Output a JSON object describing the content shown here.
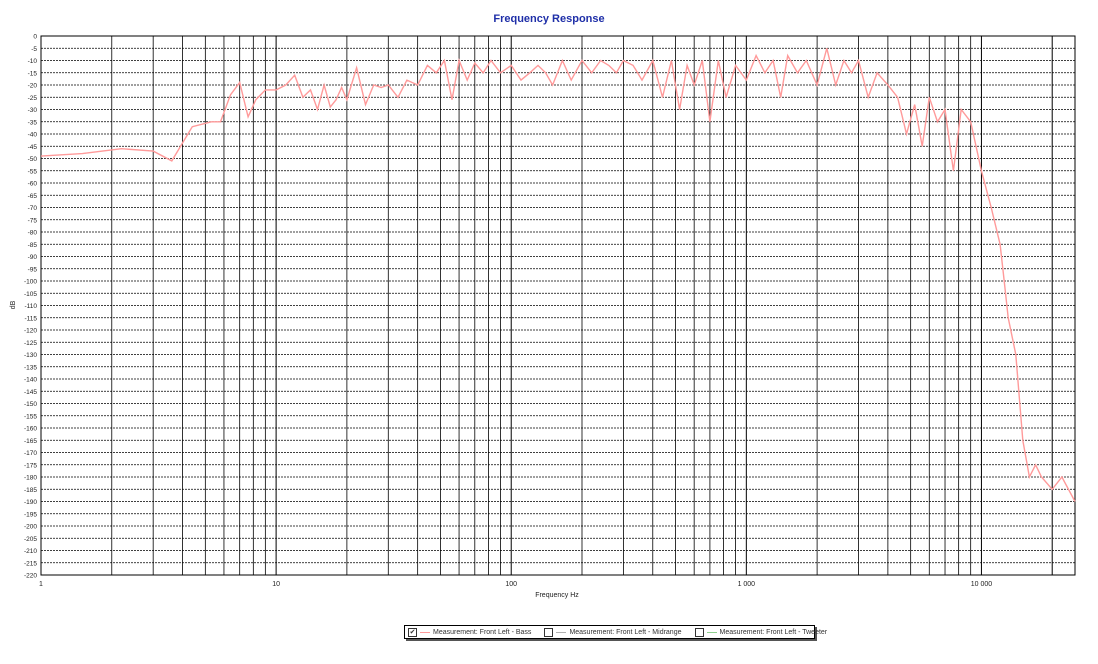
{
  "chart_data": {
    "type": "line",
    "title": "Frequency Response",
    "xlabel": "Frequency Hz",
    "ylabel": "dB",
    "x_scale": "log",
    "xlim": [
      1,
      25000
    ],
    "ylim": [
      -220,
      0
    ],
    "grid": true,
    "y_ticks": [
      0,
      -5,
      -10,
      -15,
      -20,
      -25,
      -30,
      -35,
      -40,
      -45,
      -50,
      -55,
      -60,
      -65,
      -70,
      -75,
      -80,
      -85,
      -90,
      -95,
      -100,
      -105,
      -110,
      -115,
      -120,
      -125,
      -130,
      -135,
      -140,
      -145,
      -150,
      -155,
      -160,
      -165,
      -170,
      -175,
      -180,
      -185,
      -190,
      -195,
      -200,
      -205,
      -210,
      -215,
      -220
    ],
    "x_ticks": [
      {
        "value": 1,
        "label": "1"
      },
      {
        "value": 10,
        "label": "10"
      },
      {
        "value": 100,
        "label": "100"
      },
      {
        "value": 1000,
        "label": "1 000"
      },
      {
        "value": 10000,
        "label": "10 000"
      }
    ],
    "series": [
      {
        "name": "Measurement: Front Left - Bass",
        "color": "#ff9a9a",
        "visible": true,
        "x": [
          1,
          1.5,
          2.2,
          3,
          3.6,
          4.4,
          5.3,
          5.8,
          6.4,
          7.0,
          7.6,
          8.2,
          9.0,
          10,
          11,
          12,
          13,
          14,
          15,
          16,
          17,
          18,
          19,
          20,
          22,
          24,
          26,
          28,
          30,
          33,
          36,
          40,
          44,
          48,
          52,
          56,
          60,
          65,
          70,
          76,
          82,
          90,
          100,
          110,
          120,
          130,
          140,
          150,
          165,
          180,
          200,
          220,
          240,
          260,
          280,
          300,
          330,
          360,
          400,
          440,
          480,
          520,
          560,
          600,
          650,
          700,
          760,
          820,
          900,
          1000,
          1100,
          1200,
          1300,
          1400,
          1500,
          1650,
          1800,
          2000,
          2200,
          2400,
          2600,
          2800,
          3000,
          3300,
          3600,
          4000,
          4400,
          4800,
          5200,
          5600,
          6000,
          6500,
          7000,
          7600,
          8200,
          9000,
          10000,
          11000,
          12000,
          12500,
          13000,
          14000,
          15000,
          16000,
          17000,
          18000,
          20000,
          22000,
          25000
        ],
        "y": [
          -49,
          -48,
          -46,
          -47,
          -51,
          -37,
          -35,
          -35,
          -24,
          -19,
          -33,
          -26,
          -22,
          -22,
          -20,
          -16,
          -25,
          -22,
          -30,
          -20,
          -29,
          -26,
          -21,
          -26,
          -13,
          -28,
          -20,
          -21,
          -20,
          -25,
          -18,
          -20,
          -12,
          -15,
          -10,
          -26,
          -10,
          -18,
          -11,
          -15,
          -10,
          -15,
          -12,
          -18,
          -15,
          -12,
          -15,
          -20,
          -10,
          -18,
          -10,
          -15,
          -10,
          -12,
          -15,
          -10,
          -12,
          -18,
          -10,
          -25,
          -10,
          -30,
          -12,
          -20,
          -10,
          -35,
          -10,
          -25,
          -12,
          -18,
          -8,
          -15,
          -10,
          -25,
          -8,
          -15,
          -10,
          -20,
          -5,
          -20,
          -10,
          -15,
          -10,
          -25,
          -15,
          -20,
          -25,
          -40,
          -28,
          -45,
          -25,
          -35,
          -30,
          -55,
          -30,
          -35,
          -55,
          -70,
          -85,
          -100,
          -115,
          -130,
          -165,
          -180,
          -175,
          -180,
          -185,
          -180,
          -190
        ]
      },
      {
        "name": "Measurement: Front Left - Midrange",
        "color": "#b0b0b0",
        "visible": false
      },
      {
        "name": "Measurement: Front Left - Tweeter",
        "color": "#8ecf8e",
        "visible": false
      }
    ]
  },
  "legend": {
    "items": [
      {
        "label": "Measurement: Front Left - Bass",
        "checked": true,
        "checkmark": "✔"
      },
      {
        "label": "Measurement: Front Left - Midrange",
        "checked": false,
        "checkmark": ""
      },
      {
        "label": "Measurement: Front Left - Tweeter",
        "checked": false,
        "checkmark": ""
      }
    ]
  }
}
